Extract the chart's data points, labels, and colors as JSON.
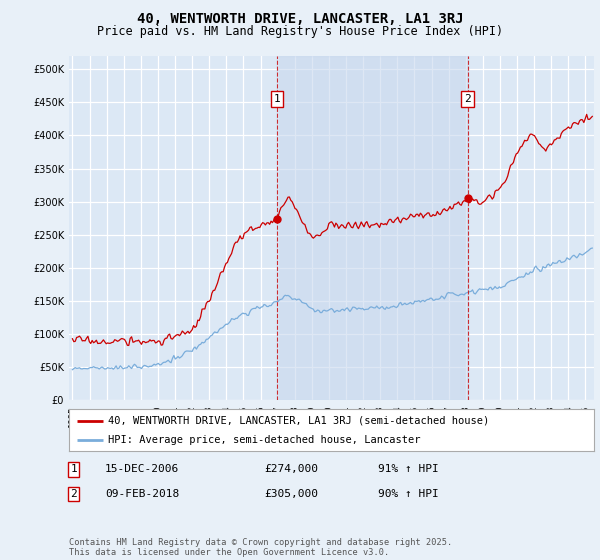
{
  "title": "40, WENTWORTH DRIVE, LANCASTER, LA1 3RJ",
  "subtitle": "Price paid vs. HM Land Registry's House Price Index (HPI)",
  "bg_color": "#e8f0f8",
  "plot_bg_color": "#dce8f5",
  "grid_color": "#ffffff",
  "red_color": "#cc0000",
  "blue_color": "#7aaddb",
  "shade_color": "#c8d8ee",
  "ylim": [
    0,
    520000
  ],
  "yticks": [
    0,
    50000,
    100000,
    150000,
    200000,
    250000,
    300000,
    350000,
    400000,
    450000,
    500000
  ],
  "ytick_labels": [
    "£0",
    "£50K",
    "£100K",
    "£150K",
    "£200K",
    "£250K",
    "£300K",
    "£350K",
    "£400K",
    "£450K",
    "£500K"
  ],
  "marker1_date_num": 2006.96,
  "marker2_date_num": 2018.11,
  "marker1_value": 274000,
  "marker2_value": 305000,
  "legend_line1": "40, WENTWORTH DRIVE, LANCASTER, LA1 3RJ (semi-detached house)",
  "legend_line2": "HPI: Average price, semi-detached house, Lancaster",
  "footer_text": "Contains HM Land Registry data © Crown copyright and database right 2025.\nThis data is licensed under the Open Government Licence v3.0.",
  "xmin": 1994.8,
  "xmax": 2025.5,
  "ann1_date": "15-DEC-2006",
  "ann1_price": "£274,000",
  "ann1_hpi": "91% ↑ HPI",
  "ann2_date": "09-FEB-2018",
  "ann2_price": "£305,000",
  "ann2_hpi": "90% ↑ HPI"
}
